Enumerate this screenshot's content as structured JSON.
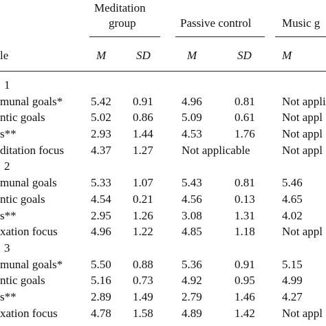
{
  "groups": {
    "meditation": {
      "line1": "Meditation",
      "line2": "group"
    },
    "passive": "Passive control",
    "music": "Music g"
  },
  "subheaders": {
    "variable": "le",
    "med_m": "M",
    "med_sd": "SD",
    "pas_m": "M",
    "pas_sd": "SD",
    "mus_m": "M"
  },
  "sections": [
    {
      "label": "1",
      "rows": [
        {
          "var": "munal goals*",
          "med_m": "5.42",
          "med_sd": "0.91",
          "pas_m": "4.96",
          "pas_sd": "0.81",
          "mus": "Not appli"
        },
        {
          "var": "ntic goals",
          "med_m": "5.02",
          "med_sd": "0.86",
          "pas_m": "5.09",
          "pas_sd": "0.61",
          "mus": "Not appl"
        },
        {
          "var": "s**",
          "med_m": "2.93",
          "med_sd": "1.44",
          "pas_m": "4.53",
          "pas_sd": "1.76",
          "mus": "Not appl"
        },
        {
          "var": "ditation focus",
          "med_m": "4.37",
          "med_sd": "1.27",
          "pas_na": "Not applicable",
          "mus": "Not appl"
        }
      ]
    },
    {
      "label": "2",
      "rows": [
        {
          "var": "munal goals",
          "med_m": "5.33",
          "med_sd": "1.07",
          "pas_m": "5.43",
          "pas_sd": "0.81",
          "mus": "5.46"
        },
        {
          "var": "ntic goals",
          "med_m": "4.54",
          "med_sd": "0.21",
          "pas_m": "4.56",
          "pas_sd": "0.13",
          "mus": "4.65"
        },
        {
          "var": "s**",
          "med_m": "2.95",
          "med_sd": "1.26",
          "pas_m": "3.08",
          "pas_sd": "1.31",
          "mus": "4.02"
        },
        {
          "var": "xation focus",
          "med_m": "4.96",
          "med_sd": "1.22",
          "pas_m": "4.85",
          "pas_sd": "1.18",
          "mus": "Not appl"
        }
      ]
    },
    {
      "label": "3",
      "rows": [
        {
          "var": "munal goals*",
          "med_m": "5.50",
          "med_sd": "0.88",
          "pas_m": "5.36",
          "pas_sd": "0.91",
          "mus": "5.15"
        },
        {
          "var": "ntic goals",
          "med_m": "5.16",
          "med_sd": "0.73",
          "pas_m": "4.92",
          "pas_sd": "0.95",
          "mus": "4.99"
        },
        {
          "var": "s**",
          "med_m": "2.89",
          "med_sd": "1.49",
          "pas_m": "2.79",
          "pas_sd": "1.46",
          "mus": "4.27"
        },
        {
          "var": "xation focus",
          "med_m": "4.78",
          "med_sd": "1.58",
          "pas_m": "4.89",
          "pas_sd": "1.42",
          "mus": "Not appl"
        }
      ]
    }
  ]
}
